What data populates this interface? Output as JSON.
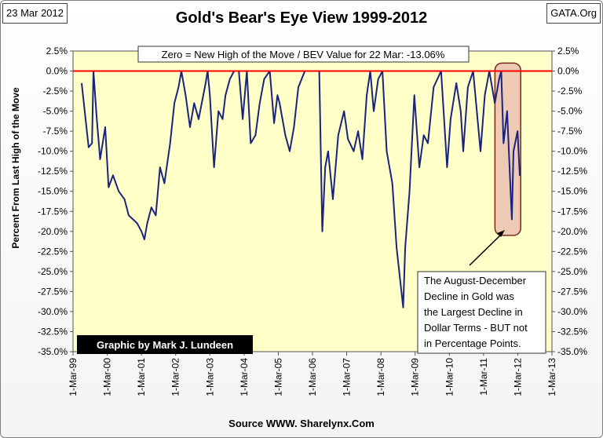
{
  "header": {
    "date": "23 Mar 2012",
    "source_site": "GATA.Org"
  },
  "colors": {
    "plot_bg": "#ffffc8",
    "line": "#1a237e",
    "zero_line": "#ff0000",
    "highlight_fill": "#e8b8ad",
    "highlight_stroke": "#7a2a1a",
    "credit_bg": "#000000",
    "credit_text": "#ffffff"
  },
  "chart_data": {
    "type": "line",
    "title": "Gold's Bear's Eye View 1999-2012",
    "ylabel": "Percent From Last High of the Move",
    "xlabel": "Source WWW. Sharelynx.Com",
    "ylim": [
      -35,
      2.5
    ],
    "xlim": [
      "1999-03-01",
      "2013-03-01"
    ],
    "grid": false,
    "yticks": [
      "2.5%",
      "0.0%",
      "-2.5%",
      "-5.0%",
      "-7.5%",
      "-10.0%",
      "-12.5%",
      "-15.0%",
      "-17.5%",
      "-20.0%",
      "-22.5%",
      "-25.0%",
      "-27.5%",
      "-30.0%",
      "-32.5%",
      "-35.0%"
    ],
    "ytick_values": [
      2.5,
      0,
      -2.5,
      -5,
      -7.5,
      -10,
      -12.5,
      -15,
      -17.5,
      -20,
      -22.5,
      -25,
      -27.5,
      -30,
      -32.5,
      -35
    ],
    "xticks": [
      "1-Mar-99",
      "1-Mar-00",
      "1-Mar-01",
      "1-Mar-02",
      "1-Mar-03",
      "1-Mar-04",
      "1-Mar-05",
      "1-Mar-06",
      "1-Mar-07",
      "1-Mar-08",
      "1-Mar-09",
      "1-Mar-10",
      "1-Mar-11",
      "1-Mar-12",
      "1-Mar-13"
    ],
    "xtick_dates": [
      "1999-03-01",
      "2000-03-01",
      "2001-03-01",
      "2002-03-01",
      "2003-03-01",
      "2004-03-01",
      "2005-03-01",
      "2006-03-01",
      "2007-03-01",
      "2008-03-01",
      "2009-03-01",
      "2010-03-01",
      "2011-03-01",
      "2012-03-01",
      "2013-03-01"
    ],
    "annotation_top": "Zero = New High of the Move / BEV Value for 22 Mar: -13.06%",
    "annotation_callout": [
      "The August-December",
      "Decline in Gold was",
      "the Largest Decline in",
      "Dollar Terms - BUT not",
      "in Percentage Points."
    ],
    "credit": "Graphic by Mark J. Lundeen",
    "highlight_region": {
      "x_start": "2011-07-01",
      "x_end": "2012-04-01",
      "y_top": 1.0,
      "y_bottom": -20.5
    },
    "series": [
      {
        "x": [
          "1999-06-01",
          "1999-08-15",
          "1999-09-20",
          "1999-10-05",
          "1999-11-10",
          "1999-12-15",
          "2000-02-08",
          "2000-03-15",
          "2000-05-01",
          "2000-07-01",
          "2000-09-01",
          "2000-10-15",
          "2000-12-01",
          "2001-01-15",
          "2001-03-01",
          "2001-04-01",
          "2001-05-01",
          "2001-06-15",
          "2001-08-01",
          "2001-09-15",
          "2001-11-01",
          "2002-01-01",
          "2002-02-15",
          "2002-04-01",
          "2002-05-01",
          "2002-06-15",
          "2002-08-01",
          "2002-09-15",
          "2002-11-01",
          "2003-01-15",
          "2003-02-05",
          "2003-03-01",
          "2003-04-15",
          "2003-06-01",
          "2003-07-15",
          "2003-08-15",
          "2003-10-01",
          "2003-11-15",
          "2004-01-05",
          "2004-02-15",
          "2004-03-30",
          "2004-05-10",
          "2004-06-30",
          "2004-08-15",
          "2004-10-01",
          "2004-11-30",
          "2005-01-15",
          "2005-02-20",
          "2005-03-15",
          "2005-05-15",
          "2005-07-01",
          "2005-08-15",
          "2005-10-01",
          "2005-12-10",
          "2006-02-01",
          "2006-05-12",
          "2006-06-14",
          "2006-07-15",
          "2006-08-15",
          "2006-10-05",
          "2006-12-01",
          "2007-02-01",
          "2007-03-15",
          "2007-05-15",
          "2007-07-01",
          "2007-08-15",
          "2007-10-01",
          "2007-11-08",
          "2007-12-15",
          "2008-02-01",
          "2008-03-17",
          "2008-05-01",
          "2008-07-01",
          "2008-08-15",
          "2008-10-24",
          "2008-11-15",
          "2008-12-31",
          "2009-02-20",
          "2009-04-15",
          "2009-06-01",
          "2009-07-15",
          "2009-09-15",
          "2009-12-03",
          "2010-01-15",
          "2010-02-05",
          "2010-03-15",
          "2010-05-15",
          "2010-07-01",
          "2010-07-28",
          "2010-09-15",
          "2010-11-10",
          "2011-01-28",
          "2011-03-15",
          "2011-05-02",
          "2011-06-30",
          "2011-08-15",
          "2011-09-06",
          "2011-10-01",
          "2011-11-08",
          "2011-12-29",
          "2012-01-15",
          "2012-02-28",
          "2012-03-22"
        ],
        "y": [
          -1.5,
          -9.5,
          -9.0,
          0.0,
          -6.0,
          -11.0,
          -7.0,
          -14.5,
          -13.0,
          -15.0,
          -16.0,
          -18.0,
          -18.5,
          -19.0,
          -20.0,
          -21.0,
          -19.0,
          -17.0,
          -18.0,
          -12.0,
          -14.0,
          -9.0,
          -4.0,
          -2.0,
          0.0,
          -3.0,
          -7.0,
          -4.0,
          -6.0,
          -1.5,
          0.0,
          -3.0,
          -12.0,
          -5.0,
          -6.0,
          -3.0,
          -1.0,
          0.0,
          0.0,
          -6.0,
          0.0,
          -9.0,
          -8.0,
          -4.0,
          -1.0,
          0.0,
          -6.5,
          -3.0,
          -4.0,
          -8.0,
          -10.0,
          -7.0,
          -2.0,
          0.0,
          0.0,
          0.0,
          -20.0,
          -12.0,
          -10.0,
          -16.0,
          -8.0,
          -5.0,
          -8.5,
          -10.0,
          -7.5,
          -11.0,
          -3.0,
          0.0,
          -5.0,
          -1.0,
          0.0,
          -10.0,
          -14.0,
          -22.0,
          -29.5,
          -22.0,
          -15.0,
          -3.0,
          -12.0,
          -8.0,
          -9.0,
          -2.0,
          0.0,
          -8.0,
          -12.0,
          -6.0,
          -1.5,
          -5.0,
          -10.0,
          -2.0,
          0.0,
          -10.0,
          -3.0,
          0.0,
          -4.0,
          -1.0,
          0.0,
          -9.0,
          -5.0,
          -18.5,
          -10.0,
          -7.5,
          -13.06
        ]
      }
    ]
  }
}
